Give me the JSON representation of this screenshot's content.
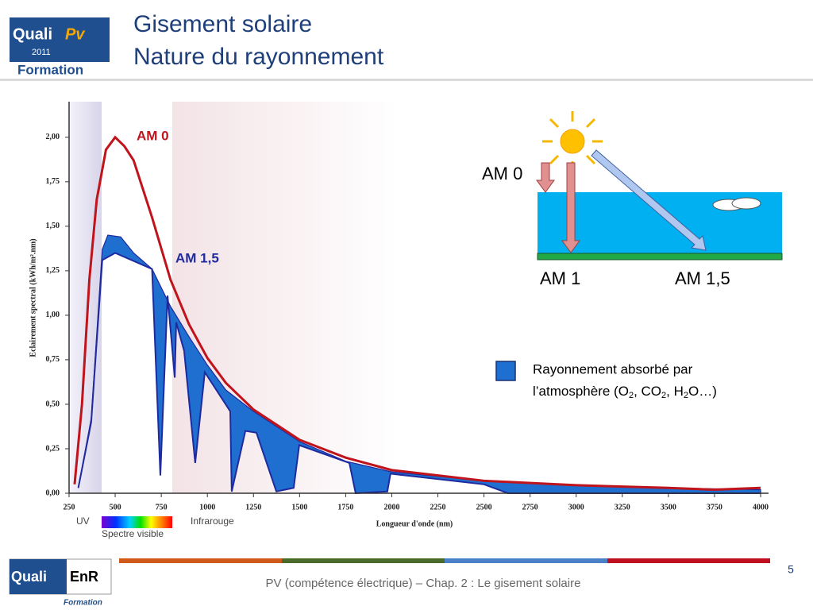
{
  "header": {
    "title_lines": [
      "Gisement solaire",
      "Nature du rayonnement"
    ],
    "logo": {
      "brand": "Quali",
      "mark": "Pv",
      "year": "2011",
      "sub": "Formation"
    }
  },
  "chart_data": {
    "type": "line",
    "ylabel": "Eclairement spectral (kWh/m².nm)",
    "xlabel": "Longueur d'onde (nm)",
    "xlim": [
      250,
      4000
    ],
    "ylim": [
      0,
      2.2
    ],
    "xticks": [
      250,
      500,
      750,
      1000,
      1250,
      1500,
      1750,
      2000,
      2250,
      2500,
      2750,
      3000,
      3250,
      3500,
      3750,
      4000
    ],
    "yticks": [
      {
        "value": 0,
        "label": "0,00"
      },
      {
        "value": 0.25,
        "label": "0,25"
      },
      {
        "value": 0.5,
        "label": "0,50"
      },
      {
        "value": 0.75,
        "label": "0,75"
      },
      {
        "value": 1,
        "label": "1,00"
      },
      {
        "value": 1.25,
        "label": "1,25"
      },
      {
        "value": 1.5,
        "label": "1,50"
      },
      {
        "value": 1.75,
        "label": "1,75"
      },
      {
        "value": 2,
        "label": "2,00"
      }
    ],
    "annotations": {
      "uv": "UV",
      "infrared": "Infrarouge",
      "visible": "Spectre visible"
    },
    "series": [
      {
        "name": "AM 0",
        "color": "#c0141c",
        "x": [
          280,
          320,
          360,
          400,
          450,
          500,
          550,
          600,
          700,
          800,
          900,
          1000,
          1100,
          1250,
          1500,
          1750,
          2000,
          2500,
          3000,
          3500,
          3750,
          4000
        ],
        "values": [
          0.05,
          0.5,
          1.2,
          1.65,
          1.93,
          2.0,
          1.95,
          1.87,
          1.55,
          1.2,
          0.95,
          0.76,
          0.62,
          0.47,
          0.3,
          0.2,
          0.13,
          0.07,
          0.045,
          0.03,
          0.02,
          0.03
        ]
      },
      {
        "name": "AM 1,5",
        "color": "#1f2a9e",
        "x": [
          300,
          370,
          430,
          500,
          700,
          745,
          784,
          823,
          831,
          874,
          934,
          986,
          1124,
          1132,
          1206,
          1266,
          1374,
          1468,
          1498,
          1770,
          1804,
          1976,
          1993,
          2500,
          2630,
          4000
        ],
        "values": [
          0.03,
          0.4,
          1.31,
          1.35,
          1.26,
          0.1,
          1.11,
          0.65,
          0.96,
          0.8,
          0.17,
          0.68,
          0.46,
          0.01,
          0.35,
          0.34,
          0.01,
          0.03,
          0.27,
          0.17,
          0,
          0.01,
          0.11,
          0.05,
          0,
          0
        ]
      }
    ],
    "absorption": {
      "color": "#1e6fd0",
      "x": [
        300,
        370,
        430,
        460,
        530,
        600,
        700,
        800,
        900,
        1000,
        1100,
        1250,
        1500,
        1750,
        2000,
        2500,
        3000,
        3500,
        4000
      ],
      "values": [
        0.03,
        0.42,
        1.37,
        1.45,
        1.44,
        1.35,
        1.26,
        1.05,
        0.88,
        0.72,
        0.58,
        0.46,
        0.29,
        0.18,
        0.12,
        0.07,
        0.045,
        0.03,
        0.02
      ]
    }
  },
  "diagram": {
    "am0": "AM 0",
    "am1": "AM 1",
    "am15": "AM 1,5"
  },
  "legend": {
    "text_parts": [
      "Rayonnement absorbé par",
      "l’atmosphère (O",
      "2",
      ", CO",
      "2",
      ", H",
      "2",
      "O…)"
    ]
  },
  "footer": {
    "text": "PV (compétence électrique) – Chap. 2 : Le gisement solaire",
    "page": "5",
    "logo": {
      "brand": "Quali",
      "mark": "EnR",
      "sub": "Formation"
    }
  }
}
